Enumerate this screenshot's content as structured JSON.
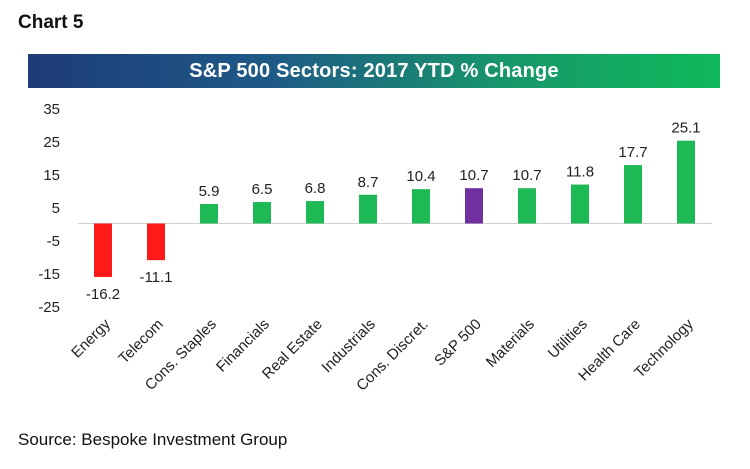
{
  "chart_label": "Chart 5",
  "source": "Source: Bespoke Investment Group",
  "colors": {
    "positive": "#1db954",
    "negative": "#ff1a1a",
    "highlight": "#7030a0"
  },
  "chart_data": {
    "type": "bar",
    "title": "S&P 500 Sectors: 2017 YTD % Change",
    "categories": [
      "Energy",
      "Telecom",
      "Cons. Staples",
      "Financials",
      "Real Estate",
      "Industrials",
      "Cons. Discret.",
      "S&P 500",
      "Materials",
      "Utilities",
      "Health Care",
      "Technology"
    ],
    "values": [
      -16.2,
      -11.1,
      5.9,
      6.5,
      6.8,
      8.7,
      10.4,
      10.7,
      10.7,
      11.8,
      17.7,
      25.1
    ],
    "value_labels": [
      "-16.2",
      "-11.1",
      "5.9",
      "6.5",
      "6.8",
      "8.7",
      "10.4",
      "10.7",
      "10.7",
      "11.8",
      "17.7",
      "25.1"
    ],
    "highlight": "S&P 500",
    "yticks": [
      "35",
      "25",
      "15",
      "5",
      "-5",
      "-15",
      "-25"
    ],
    "ytick_values": [
      35,
      25,
      15,
      5,
      -5,
      -15,
      -25
    ],
    "ylim": [
      -25,
      35
    ],
    "xlabel": "",
    "ylabel": "",
    "grid": false,
    "legend": "none"
  }
}
